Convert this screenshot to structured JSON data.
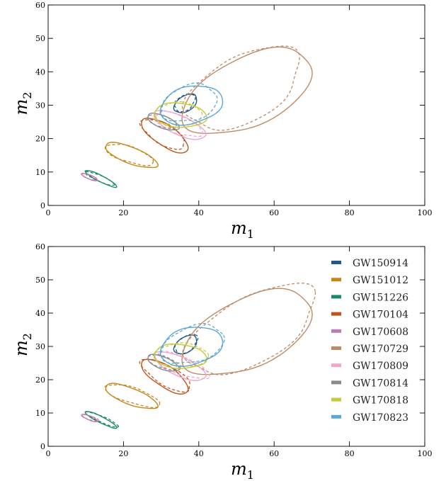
{
  "chart_data": [
    {
      "type": "contour",
      "panel": "top",
      "xlabel": "m_1",
      "ylabel": "m_2",
      "xlim": [
        0,
        100
      ],
      "ylim": [
        0,
        60
      ],
      "xticks": [
        0,
        20,
        40,
        60,
        80,
        100
      ],
      "yticks": [
        0,
        10,
        20,
        30,
        40,
        50,
        60
      ],
      "x_tick_labels": [
        "0",
        "20",
        "40",
        "60",
        "80",
        "100"
      ],
      "y_tick_labels": [
        "0",
        "10",
        "20",
        "30",
        "40",
        "50",
        "60"
      ],
      "grid": false,
      "legend": null,
      "line_styles": {
        "solid": "one posterior",
        "dashed": "other posterior"
      }
    },
    {
      "type": "contour",
      "panel": "bottom",
      "xlabel": "m_1",
      "ylabel": "m_2",
      "xlim": [
        0,
        100
      ],
      "ylim": [
        0,
        60
      ],
      "xticks": [
        0,
        20,
        40,
        60,
        80,
        100
      ],
      "yticks": [
        0,
        10,
        20,
        30,
        40,
        50,
        60
      ],
      "x_tick_labels": [
        "0",
        "20",
        "40",
        "60",
        "80",
        "100"
      ],
      "y_tick_labels": [
        "0",
        "10",
        "20",
        "30",
        "40",
        "50",
        "60"
      ],
      "grid": false,
      "legend": "top-right"
    }
  ],
  "axis_text": {
    "m": "m",
    "sub1": "1",
    "sub2": "2"
  },
  "series": [
    {
      "name": "GW150914",
      "color": "#1f5a8a",
      "c": [
        36.5,
        30.5
      ],
      "a": 3.5,
      "b": 2.2,
      "ang": 40
    },
    {
      "name": "GW151012",
      "color": "#c8861a",
      "c": [
        22,
        15
      ],
      "a": 7.5,
      "b": 2.4,
      "ang": -24
    },
    {
      "name": "GW151226",
      "color": "#1a8a6a",
      "c": [
        14,
        8
      ],
      "a": 4.8,
      "b": 0.9,
      "ang": -30
    },
    {
      "name": "GW170104",
      "color": "#c0541a",
      "c": [
        31,
        21
      ],
      "a": 7.5,
      "b": 3.0,
      "ang": -38
    },
    {
      "name": "GW170608",
      "color": "#c07ab0",
      "c": [
        11,
        8.5
      ],
      "a": 2.3,
      "b": 0.6,
      "ang": -25
    },
    {
      "name": "GW170729",
      "color": "#bf8a66",
      "c": [
        53,
        34
      ],
      "a": 19,
      "b": 10,
      "ang": 30
    },
    {
      "name": "GW170809",
      "color": "#f2a5cc",
      "c": [
        35,
        24
      ],
      "a": 7.5,
      "b": 2.8,
      "ang": -28
    },
    {
      "name": "GW170814",
      "color": "#8a8a8a",
      "c": [
        30.5,
        25
      ],
      "a": 4.5,
      "b": 1.8,
      "ang": -25
    },
    {
      "name": "GW170818",
      "color": "#c8c83a",
      "c": [
        35,
        27
      ],
      "a": 7,
      "b": 3.6,
      "ang": -5
    },
    {
      "name": "GW170823",
      "color": "#5aa8d4",
      "c": [
        38,
        30
      ],
      "a": 8.5,
      "b": 5.5,
      "ang": 18
    }
  ]
}
